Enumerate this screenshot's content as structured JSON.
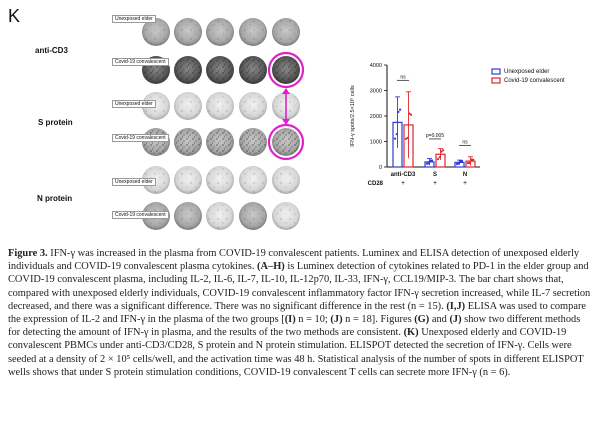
{
  "panel_letter": "K",
  "elispot": {
    "conditions": [
      {
        "label": "anti-CD3",
        "rows": [
          "Unexposed elder",
          "Covid-19 convalescent"
        ]
      },
      {
        "label": "S protein",
        "rows": [
          "Unexposed elder",
          "Covid-19 convalescent"
        ]
      },
      {
        "label": "N protein",
        "rows": [
          "Unexposed elder",
          "Covid-19 convalescent"
        ]
      }
    ]
  },
  "chart_data": {
    "type": "bar",
    "ylabel": "IFN-γ spots/2.5×10⁵ cells",
    "ylim": [
      0,
      4000
    ],
    "yticks": [
      0,
      1000,
      2000,
      3000,
      4000
    ],
    "categories": [
      "anti-CD3",
      "S",
      "N"
    ],
    "cd28_label": "CD28",
    "cd28_values": [
      "+",
      "+",
      "+"
    ],
    "series": [
      {
        "name": "Unexposed elder",
        "color": "#2b3bd6",
        "values": [
          1750,
          200,
          180
        ],
        "errors": [
          1000,
          130,
          90
        ]
      },
      {
        "name": "Covid-19 convalescent",
        "color": "#e0262b",
        "values": [
          1650,
          500,
          230
        ],
        "errors": [
          1300,
          220,
          170
        ]
      }
    ],
    "annotations": [
      {
        "category": "anti-CD3",
        "text": "ns"
      },
      {
        "category": "S",
        "text": "p=0.005"
      },
      {
        "category": "N",
        "text": "ns"
      }
    ]
  },
  "caption": {
    "fig_label": "Figure 3.",
    "p1": " IFN-γ was increased in the plasma from COVID-19 convalescent patients. Luminex and ELISA detection of unexposed elderly individuals and COVID-19 convalescent plasma cytokines. ",
    "ah": "(A–H)",
    "p2": " is Luminex detection of cytokines related to PD-1 in the elder group and COVID-19 convalescent plasma, including IL-2, IL-6, IL-7, IL-10, IL-12p70, IL-33, IFN-γ, CCL19/MIP-3. The bar chart shows that, compared with unexposed elderly individuals, COVID-19 convalescent inflammatory factor IFN-γ secretion increased, while IL-7 secretion decreased, and there was a significant difference. There was no significant difference in the rest (n = 15). ",
    "ij": "(I,J)",
    "p3": " ELISA was used to compare the expression of IL-2 and IFN-γ in the plasma of the two groups [",
    "i": "(I)",
    "p4": " n = 10; ",
    "j": "(J)",
    "p5": " n = 18]. Figures ",
    "g": "(G)",
    "p6": " and ",
    "j2": "(J)",
    "p7": " show two different methods for detecting the amount of IFN-γ in plasma, and the results of the two methods are consistent. ",
    "k": "(K)",
    "p8": " Unexposed elderly and COVID-19 convalescent PBMCs under anti-CD3/CD28, S protein and N protein stimulation. ELISPOT detected the secretion of IFN-γ. Cells were seeded at a density of 2 × 10⁵ cells/well, and the activation time was 48 h. Statistical analysis of the number of spots in different ELISPOT wells shows that under S protein stimulation conditions, COVID-19 convalescent T cells can secrete more IFN-γ (n = 6)."
  }
}
